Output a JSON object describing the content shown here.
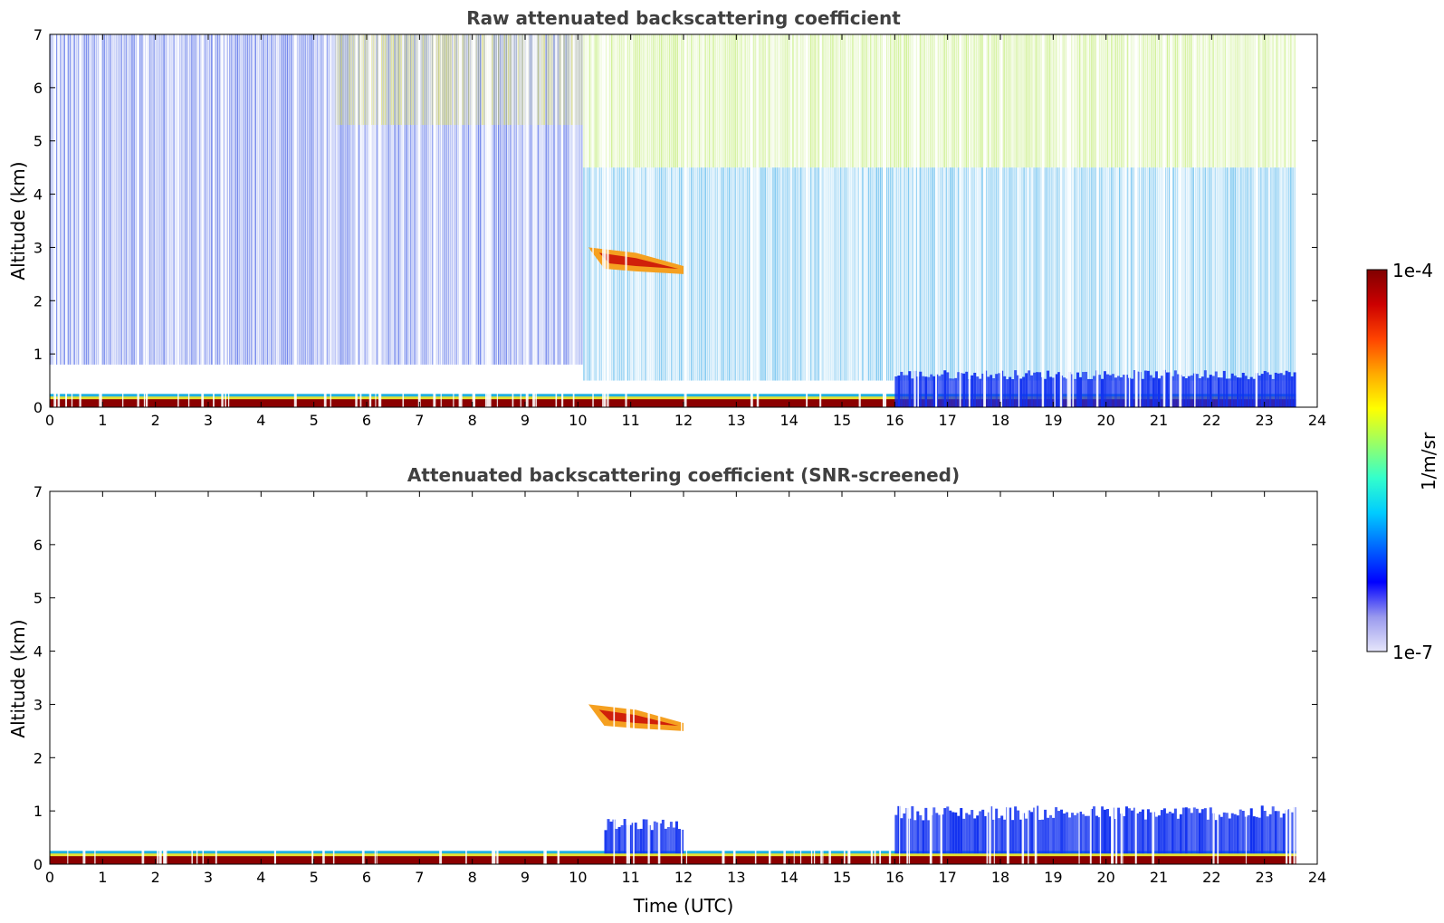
{
  "chart_data": [
    {
      "type": "heatmap",
      "title": "Raw attenuated backscattering coefficient",
      "xlabel": "",
      "ylabel": "Altitude (km)",
      "xlim": [
        0,
        24
      ],
      "ylim": [
        0,
        7
      ],
      "x_ticks": [
        "0",
        "1",
        "2",
        "3",
        "4",
        "5",
        "6",
        "7",
        "8",
        "9",
        "10",
        "11",
        "12",
        "13",
        "14",
        "15",
        "16",
        "17",
        "18",
        "19",
        "20",
        "21",
        "22",
        "23",
        "24"
      ],
      "y_ticks": [
        "0",
        "1",
        "2",
        "3",
        "4",
        "5",
        "6",
        "7"
      ],
      "data_end_time": 23.6,
      "features": [
        {
          "kind": "surface_layer",
          "t0": 0,
          "t1": 23.6,
          "alt0": 0,
          "alt1": 0.25,
          "color": "#8b0000"
        },
        {
          "kind": "noise_low",
          "t0": 0,
          "t1": 10.1,
          "alt0": 0.8,
          "alt1": 7,
          "color": "#1f3fe0"
        },
        {
          "kind": "noise_high",
          "t0": 5.4,
          "t1": 10.1,
          "alt0": 5.3,
          "alt1": 7,
          "color": "#e4e44a"
        },
        {
          "kind": "noise_high",
          "t0": 10.1,
          "t1": 23.6,
          "alt0": 4.5,
          "alt1": 7,
          "color": "#b5e85a"
        },
        {
          "kind": "noise_mid",
          "t0": 10.1,
          "t1": 23.6,
          "alt0": 0.5,
          "alt1": 4.5,
          "color": "#2fa6e8"
        },
        {
          "kind": "cloud",
          "t0": 10.2,
          "t1": 12.0,
          "alt0": 2.5,
          "alt1": 3.0,
          "color": "#d0200a"
        },
        {
          "kind": "boundary_layer",
          "t0": 16.0,
          "t1": 23.6,
          "alt0": 0,
          "alt1": 0.7,
          "color": "#1030f0"
        }
      ]
    },
    {
      "type": "heatmap",
      "title": "Attenuated backscattering coefficient (SNR-screened)",
      "xlabel": "Time (UTC)",
      "ylabel": "Altitude (km)",
      "xlim": [
        0,
        24
      ],
      "ylim": [
        0,
        7
      ],
      "x_ticks": [
        "0",
        "1",
        "2",
        "3",
        "4",
        "5",
        "6",
        "7",
        "8",
        "9",
        "10",
        "11",
        "12",
        "13",
        "14",
        "15",
        "16",
        "17",
        "18",
        "19",
        "20",
        "21",
        "22",
        "23",
        "24"
      ],
      "y_ticks": [
        "0",
        "1",
        "2",
        "3",
        "4",
        "5",
        "6",
        "7"
      ],
      "data_end_time": 23.6,
      "features": [
        {
          "kind": "surface_layer",
          "t0": 0,
          "t1": 23.6,
          "alt0": 0,
          "alt1": 0.25,
          "color": "#8b0000"
        },
        {
          "kind": "cloud",
          "t0": 10.2,
          "t1": 12.0,
          "alt0": 2.5,
          "alt1": 3.0,
          "color": "#d0200a"
        },
        {
          "kind": "boundary_layer",
          "t0": 10.5,
          "t1": 12.0,
          "alt0": 0.2,
          "alt1": 0.85,
          "color": "#1030f0"
        },
        {
          "kind": "boundary_layer",
          "t0": 16.0,
          "t1": 23.6,
          "alt0": 0.2,
          "alt1": 1.1,
          "color": "#1030f0"
        }
      ]
    }
  ],
  "colorbar": {
    "label": "1/m/sr",
    "max_label": "1e-4",
    "min_label": "1e-7",
    "colors": [
      "#e6e6fa",
      "#9999ee",
      "#0000ff",
      "#0066ff",
      "#00ccff",
      "#33ffcc",
      "#99ff66",
      "#ffff00",
      "#ffaa00",
      "#ff4400",
      "#cc0000",
      "#800000"
    ]
  }
}
